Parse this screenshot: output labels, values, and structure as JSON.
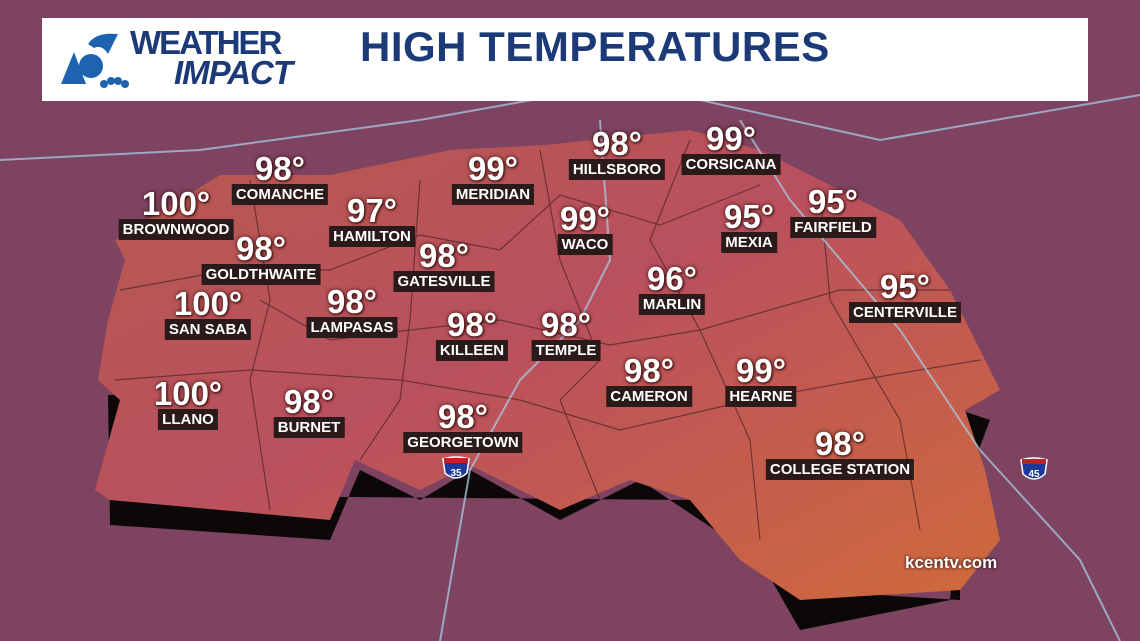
{
  "header": {
    "logo_line1": "WEATHER",
    "logo_line2": "IMPACT",
    "title": "HIGH TEMPERATURES"
  },
  "cities": [
    {
      "temp": "98°",
      "name": "COMANCHE"
    },
    {
      "temp": "100°",
      "name": "BROWNWOOD"
    },
    {
      "temp": "99°",
      "name": "MERIDIAN"
    },
    {
      "temp": "98°",
      "name": "HILLSBORO"
    },
    {
      "temp": "99°",
      "name": "CORSICANA"
    },
    {
      "temp": "97°",
      "name": "HAMILTON"
    },
    {
      "temp": "98°",
      "name": "GOLDTHWAITE"
    },
    {
      "temp": "99°",
      "name": "WACO"
    },
    {
      "temp": "95°",
      "name": "MEXIA"
    },
    {
      "temp": "95°",
      "name": "FAIRFIELD"
    },
    {
      "temp": "98°",
      "name": "GATESVILLE"
    },
    {
      "temp": "100°",
      "name": "SAN SABA"
    },
    {
      "temp": "98°",
      "name": "LAMPASAS"
    },
    {
      "temp": "96°",
      "name": "MARLIN"
    },
    {
      "temp": "95°",
      "name": "CENTERVILLE"
    },
    {
      "temp": "98°",
      "name": "KILLEEN"
    },
    {
      "temp": "98°",
      "name": "TEMPLE"
    },
    {
      "temp": "100°",
      "name": "LLANO"
    },
    {
      "temp": "98°",
      "name": "BURNET"
    },
    {
      "temp": "98°",
      "name": "CAMERON"
    },
    {
      "temp": "99°",
      "name": "HEARNE"
    },
    {
      "temp": "98°",
      "name": "GEORGETOWN"
    },
    {
      "temp": "98°",
      "name": "COLLEGE STATION"
    }
  ],
  "highways": [
    "35",
    "45"
  ],
  "watermark": "kcentv.com",
  "colors": {
    "outside": "#7a3f5a",
    "region": "#c0583f",
    "title": "#1d3a78"
  }
}
